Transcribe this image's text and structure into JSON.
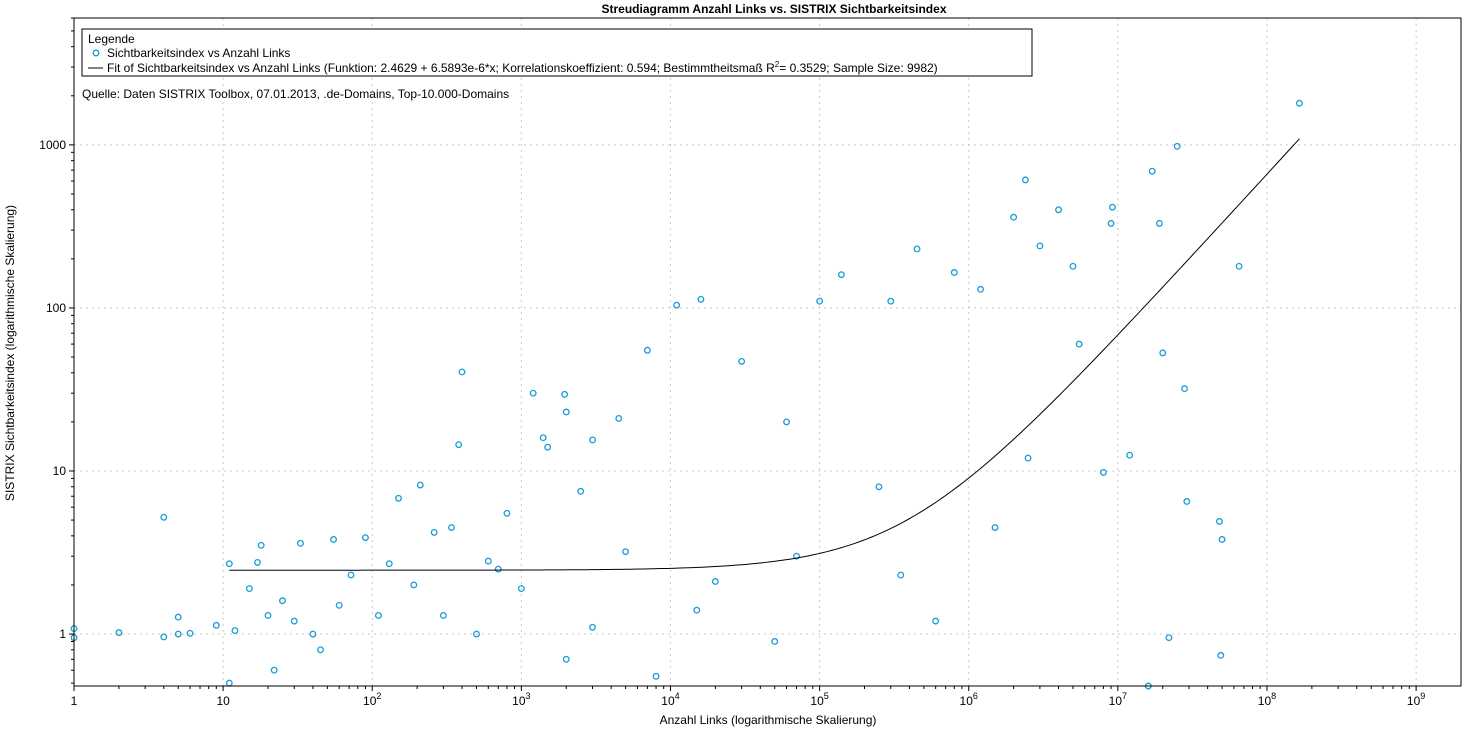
{
  "chart_data": {
    "type": "scatter",
    "title": "Streudiagramm Anzahl Links vs. SISTRIX Sichtbarkeitsindex",
    "xlabel": "Anzahl Links (logarithmische Skalierung)",
    "ylabel": "SISTRIX Sichtbarkeitsindex (logarithmische Skalierung)",
    "xscale": "log",
    "yscale": "log",
    "xlim": [
      1,
      2000000000
    ],
    "ylim": [
      0.48,
      6000
    ],
    "x_ticks": [
      {
        "value": 1,
        "base": "1",
        "exp": ""
      },
      {
        "value": 10,
        "base": "10",
        "exp": ""
      },
      {
        "value": 100,
        "base": "10",
        "exp": "2"
      },
      {
        "value": 1000,
        "base": "10",
        "exp": "3"
      },
      {
        "value": 10000,
        "base": "10",
        "exp": "4"
      },
      {
        "value": 100000,
        "base": "10",
        "exp": "5"
      },
      {
        "value": 1000000,
        "base": "10",
        "exp": "6"
      },
      {
        "value": 10000000,
        "base": "10",
        "exp": "7"
      },
      {
        "value": 100000000,
        "base": "10",
        "exp": "8"
      },
      {
        "value": 1000000000,
        "base": "10",
        "exp": "9"
      }
    ],
    "y_ticks": [
      {
        "value": 1,
        "label": "1"
      },
      {
        "value": 10,
        "label": "10"
      },
      {
        "value": 100,
        "label": "100"
      },
      {
        "value": 1000,
        "label": "1000"
      }
    ],
    "grid": true,
    "legend_position": "top-left",
    "legend": {
      "title": "Legende",
      "scatter_label": "Sichtbarkeitsindex vs Anzahl Links",
      "fit_label_before": "Fit of Sichtbarkeitsindex vs Anzahl Links (Funktion: 2.4629 + 6.5893e-6*x; Korrelationskoeffizient: 0.594; Bestimmtheitsmaß R",
      "fit_label_sup": "2",
      "fit_label_after": "= 0.3529; Sample Size: 9982)"
    },
    "annotation": "Quelle: Daten SISTRIX Toolbox, 07.01.2013, .de-Domains, Top-10.000-Domains",
    "series": [
      {
        "name": "Sichtbarkeitsindex vs Anzahl Links",
        "type": "scatter",
        "color": "#1a9bd7",
        "points": [
          [
            1,
            1.08
          ],
          [
            1,
            0.95
          ],
          [
            2,
            1.02
          ],
          [
            4,
            0.96
          ],
          [
            4,
            5.2
          ],
          [
            5,
            1.0
          ],
          [
            5,
            1.27
          ],
          [
            6,
            1.01
          ],
          [
            9,
            1.13
          ],
          [
            11,
            0.5
          ],
          [
            11,
            2.7
          ],
          [
            12,
            1.05
          ],
          [
            15,
            1.9
          ],
          [
            17,
            2.75
          ],
          [
            18,
            3.5
          ],
          [
            20,
            1.3
          ],
          [
            22,
            0.6
          ],
          [
            25,
            1.6
          ],
          [
            30,
            1.2
          ],
          [
            33,
            3.6
          ],
          [
            40,
            1.0
          ],
          [
            45,
            0.8
          ],
          [
            55,
            3.8
          ],
          [
            60,
            1.5
          ],
          [
            72,
            2.3
          ],
          [
            90,
            3.9
          ],
          [
            110,
            1.3
          ],
          [
            130,
            2.7
          ],
          [
            150,
            6.8
          ],
          [
            190,
            2.0
          ],
          [
            210,
            8.2
          ],
          [
            260,
            4.2
          ],
          [
            300,
            1.3
          ],
          [
            340,
            4.5
          ],
          [
            380,
            14.5
          ],
          [
            400,
            40.5
          ],
          [
            600,
            2.8
          ],
          [
            800,
            5.5
          ],
          [
            1200,
            30.0
          ],
          [
            1400,
            16.0
          ],
          [
            1500,
            14.0
          ],
          [
            1950,
            29.5
          ],
          [
            2000,
            23.0
          ],
          [
            2500,
            7.5
          ],
          [
            3000,
            15.5
          ],
          [
            4500,
            21.0
          ],
          [
            7000,
            55.0
          ],
          [
            11000,
            104.0
          ],
          [
            16000,
            113.0
          ],
          [
            30000,
            47.0
          ],
          [
            60000,
            20.0
          ],
          [
            100000,
            110.0
          ],
          [
            140000,
            160.0
          ],
          [
            300000,
            110.0
          ],
          [
            450000,
            230.0
          ],
          [
            800000,
            165.0
          ],
          [
            1200000,
            130.0
          ],
          [
            2000000,
            360.0
          ],
          [
            2400000,
            610.0
          ],
          [
            3000000,
            240.0
          ],
          [
            4000000,
            400.0
          ],
          [
            5000000,
            180.0
          ],
          [
            9000000,
            330.0
          ],
          [
            9200000,
            415.0
          ],
          [
            17000000,
            690.0
          ],
          [
            19000000,
            330.0
          ],
          [
            20000000,
            53.0
          ],
          [
            25000000,
            980.0
          ],
          [
            28000000,
            32.0
          ],
          [
            29000000,
            6.5
          ],
          [
            65000000,
            180.0
          ],
          [
            165000000,
            1800.0
          ],
          [
            48000000,
            4.9
          ],
          [
            50000000,
            3.8
          ],
          [
            49000000,
            0.74
          ],
          [
            22000000,
            0.95
          ],
          [
            16000000,
            0.48
          ],
          [
            12000000,
            12.5
          ],
          [
            8000000,
            9.8
          ],
          [
            5500000,
            60.0
          ],
          [
            70000,
            3.0
          ],
          [
            50000,
            0.9
          ],
          [
            20000,
            2.1
          ],
          [
            15000,
            1.4
          ],
          [
            8000,
            0.55
          ],
          [
            5000,
            3.2
          ],
          [
            3000,
            1.1
          ],
          [
            2000,
            0.7
          ],
          [
            1000,
            1.9
          ],
          [
            700,
            2.5
          ],
          [
            500,
            1.0
          ],
          [
            250000,
            8.0
          ],
          [
            350000,
            2.3
          ],
          [
            600000,
            1.2
          ],
          [
            1500000,
            4.5
          ],
          [
            2500000,
            12.0
          ]
        ]
      }
    ],
    "fit": {
      "name": "Fit of Sichtbarkeitsindex vs Anzahl Links",
      "intercept": 2.4629,
      "slope": 6.5893e-06,
      "x_range": [
        11,
        165000000
      ],
      "color": "#000000"
    }
  }
}
